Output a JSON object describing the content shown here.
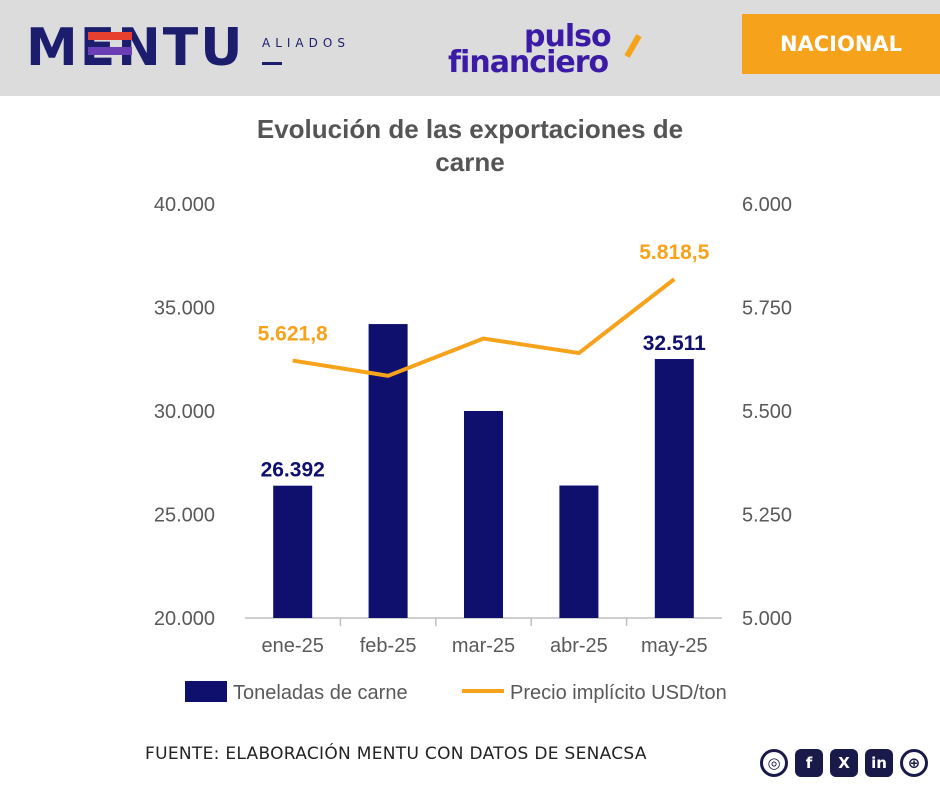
{
  "header": {
    "mentu_brand": "MENTU",
    "mentu_sub": "ALIADOS",
    "pulso_line1": "pulso",
    "pulso_line2": "financiero",
    "section_label": "NACIONAL"
  },
  "colors": {
    "header_bg": "#dcdcdc",
    "navy": "#0f0f6e",
    "orange": "#f6a31b",
    "mentu_red": "#e8402f",
    "mentu_purple": "#6a3fb5"
  },
  "chart_data": {
    "type": "bar",
    "title_lines": [
      "Evolución de las exportaciones de",
      "carne"
    ],
    "categories": [
      "ene-25",
      "feb-25",
      "mar-25",
      "abr-25",
      "may-25"
    ],
    "series": [
      {
        "name": "Toneladas de carne",
        "type": "bar",
        "axis": "left",
        "values": [
          26392,
          34200,
          30000,
          26400,
          32511
        ],
        "labels": [
          "26.392",
          "",
          "",
          "",
          "32.511"
        ]
      },
      {
        "name": "Precio implícito USD/ton",
        "type": "line",
        "axis": "right",
        "values": [
          5621.8,
          5585,
          5675,
          5640,
          5818.5
        ],
        "labels": [
          "5.621,8",
          "",
          "",
          "",
          "5.818,5"
        ]
      }
    ],
    "y_left": {
      "min": 20000,
      "max": 40000,
      "ticks": [
        20000,
        25000,
        30000,
        35000,
        40000
      ],
      "tick_labels": [
        "20.000",
        "25.000",
        "30.000",
        "35.000",
        "40.000"
      ]
    },
    "y_right": {
      "min": 5000,
      "max": 6000,
      "ticks": [
        5000,
        5250,
        5500,
        5750,
        6000
      ],
      "tick_labels": [
        "5.000",
        "5.250",
        "5.500",
        "5.750",
        "6.000"
      ]
    },
    "grid": false,
    "legend_position": "bottom"
  },
  "footer": {
    "source": "FUENTE: ELABORACIÓN MENTU CON DATOS DE SENACSA",
    "socials": [
      {
        "icon": "instagram-icon",
        "glyph": "◎"
      },
      {
        "icon": "facebook-icon",
        "glyph": "f"
      },
      {
        "icon": "x-icon",
        "glyph": "X"
      },
      {
        "icon": "linkedin-icon",
        "glyph": "in"
      },
      {
        "icon": "globe-icon",
        "glyph": "⊕"
      }
    ]
  }
}
